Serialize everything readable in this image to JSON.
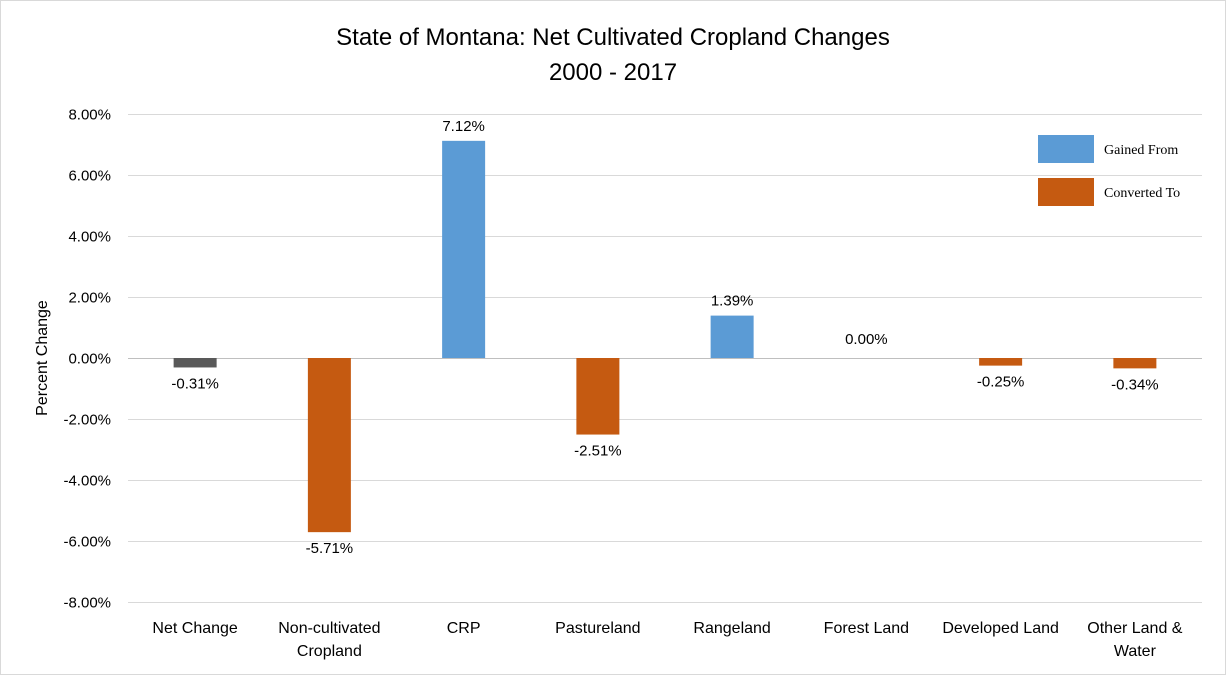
{
  "chart_data": {
    "type": "bar",
    "title": "State of Montana: Net Cultivated Cropland Changes",
    "subtitle": "2000 - 2017",
    "xlabel": "",
    "ylabel": "Percent Change",
    "ylim": [
      -0.08,
      0.08
    ],
    "yticks": [
      0.08,
      0.06,
      0.04,
      0.02,
      0.0,
      -0.02,
      -0.04,
      -0.06,
      -0.08
    ],
    "ytick_labels": [
      "8.00%",
      "6.00%",
      "4.00%",
      "2.00%",
      "0.00%",
      "-2.00%",
      "-4.00%",
      "-6.00%",
      "-8.00%"
    ],
    "grid": true,
    "legend_position": "top-right",
    "categories": [
      [
        "Net Change"
      ],
      [
        "Non-cultivated",
        "Cropland"
      ],
      [
        "CRP"
      ],
      [
        "Pastureland"
      ],
      [
        "Rangeland"
      ],
      [
        "Forest Land"
      ],
      [
        "Developed Land"
      ],
      [
        "Other Land &",
        "Water"
      ]
    ],
    "values": [
      -0.0031,
      -0.0571,
      0.0712,
      -0.0251,
      0.0139,
      0.0,
      -0.0025,
      -0.0034
    ],
    "data_labels": [
      "-0.31%",
      "-5.71%",
      "7.12%",
      "-2.51%",
      "1.39%",
      "0.00%",
      "-0.25%",
      "-0.34%"
    ],
    "bar_colors": [
      "#595959",
      "#C55A11",
      "#5B9BD5",
      "#C55A11",
      "#5B9BD5",
      "#5B9BD5",
      "#C55A11",
      "#C55A11"
    ],
    "legend": [
      {
        "label": "Gained From",
        "color": "#5B9BD5"
      },
      {
        "label": "Converted To",
        "color": "#C55A11"
      }
    ],
    "colors": {
      "grid": "#D9D9D9",
      "axis": "#BFBFBF",
      "frame": "#D9D9D9"
    }
  }
}
